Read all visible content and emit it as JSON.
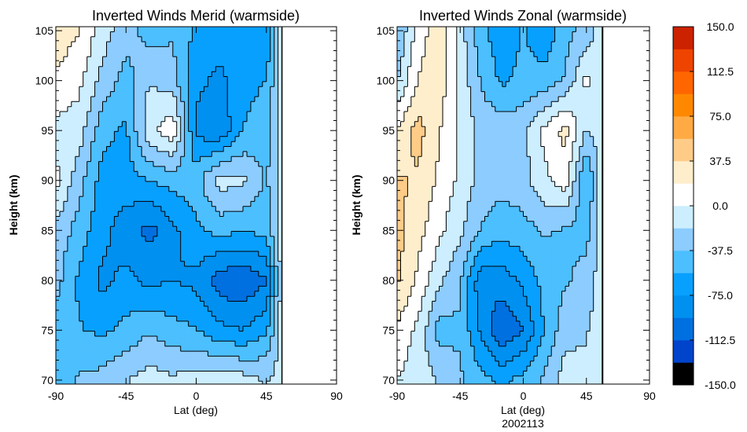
{
  "chart_data": [
    {
      "type": "heatmap",
      "title": "Inverted Winds Merid (warmside)",
      "xlabel": "Lat (deg)",
      "ylabel": "Height (km)",
      "xlim": [
        -90,
        90
      ],
      "ylim": [
        69.6,
        105.4
      ],
      "xticks": [
        "-90",
        "-45",
        "0",
        "45",
        "90"
      ],
      "yticks": [
        "70",
        "75",
        "80",
        "85",
        "90",
        "95",
        "100",
        "105"
      ],
      "lat": [
        -90,
        -75,
        -60,
        -45,
        -30,
        -15,
        0,
        15,
        30,
        45,
        55
      ],
      "height": [
        105,
        100,
        95,
        90,
        85,
        80,
        75,
        70
      ],
      "values": [
        [
          30,
          20,
          -10,
          -30,
          -45,
          -40,
          -60,
          -65,
          -70,
          -75,
          -10
        ],
        [
          15,
          5,
          -25,
          -45,
          -20,
          -30,
          -70,
          -80,
          -65,
          -55,
          -10
        ],
        [
          -5,
          -10,
          -50,
          -60,
          -5,
          15,
          -80,
          -90,
          -55,
          -45,
          -10
        ],
        [
          5,
          -30,
          -65,
          -65,
          -55,
          -50,
          -45,
          -10,
          -15,
          -40,
          -10
        ],
        [
          -25,
          -45,
          -70,
          -85,
          -100,
          -80,
          -60,
          -50,
          -55,
          -50,
          -10
        ],
        [
          -30,
          -60,
          -80,
          -70,
          -80,
          -75,
          -80,
          -105,
          -110,
          -95,
          -10
        ],
        [
          -50,
          -55,
          -60,
          -50,
          -40,
          -50,
          -55,
          -70,
          -75,
          -60,
          -10
        ],
        [
          -50,
          -35,
          -30,
          -20,
          -10,
          -15,
          -10,
          -10,
          -10,
          -20,
          -10
        ]
      ]
    },
    {
      "type": "heatmap",
      "title": "Inverted Winds Zonal (warmside)",
      "xlabel": "Lat (deg)",
      "ylabel": "Height (km)",
      "subtitle": "2002113",
      "xlim": [
        -90,
        90
      ],
      "ylim": [
        69.6,
        105.4
      ],
      "xticks": [
        "-90",
        "-45",
        "0",
        "45",
        "90"
      ],
      "yticks": [
        "70",
        "75",
        "80",
        "85",
        "90",
        "95",
        "100",
        "105"
      ],
      "lat": [
        -90,
        -75,
        -60,
        -45,
        -30,
        -15,
        0,
        15,
        30,
        45,
        55
      ],
      "height": [
        105,
        100,
        95,
        90,
        85,
        80,
        75,
        70
      ],
      "values": [
        [
          -40,
          10,
          30,
          -10,
          -50,
          -70,
          -55,
          -70,
          -45,
          -30,
          -10
        ],
        [
          -20,
          20,
          30,
          -5,
          -40,
          -60,
          -50,
          -50,
          -35,
          5,
          -10
        ],
        [
          20,
          45,
          20,
          -5,
          -25,
          -25,
          -25,
          5,
          25,
          -20,
          -10
        ],
        [
          40,
          35,
          15,
          -5,
          -25,
          -30,
          -25,
          -5,
          10,
          -60,
          -10
        ],
        [
          45,
          25,
          5,
          -15,
          -40,
          -50,
          -45,
          -35,
          -40,
          -45,
          -10
        ],
        [
          40,
          15,
          -15,
          -35,
          -90,
          -85,
          -70,
          -50,
          -40,
          -30,
          -10
        ],
        [
          15,
          -5,
          -45,
          -40,
          -80,
          -110,
          -95,
          -55,
          -25,
          -20,
          -10
        ],
        [
          0,
          -10,
          -20,
          -35,
          -50,
          -60,
          -50,
          -35,
          -10,
          -15,
          -10
        ]
      ]
    }
  ],
  "colorbar": {
    "range": [
      -150,
      150
    ],
    "step": 18.75,
    "labels": [
      "150.0",
      "112.5",
      "75.0",
      "37.5",
      "0.0",
      "-37.5",
      "-75.0",
      "-112.5",
      "-150.0"
    ],
    "colors": [
      "#000000",
      "#0044cc",
      "#0070e0",
      "#0090f0",
      "#08a0ff",
      "#4cbfff",
      "#8cccff",
      "#cceeff",
      "#ffffff",
      "#ffeecc",
      "#ffcc88",
      "#ffaa44",
      "#ff8800",
      "#ff6600",
      "#ee4400",
      "#cc2200"
    ]
  }
}
